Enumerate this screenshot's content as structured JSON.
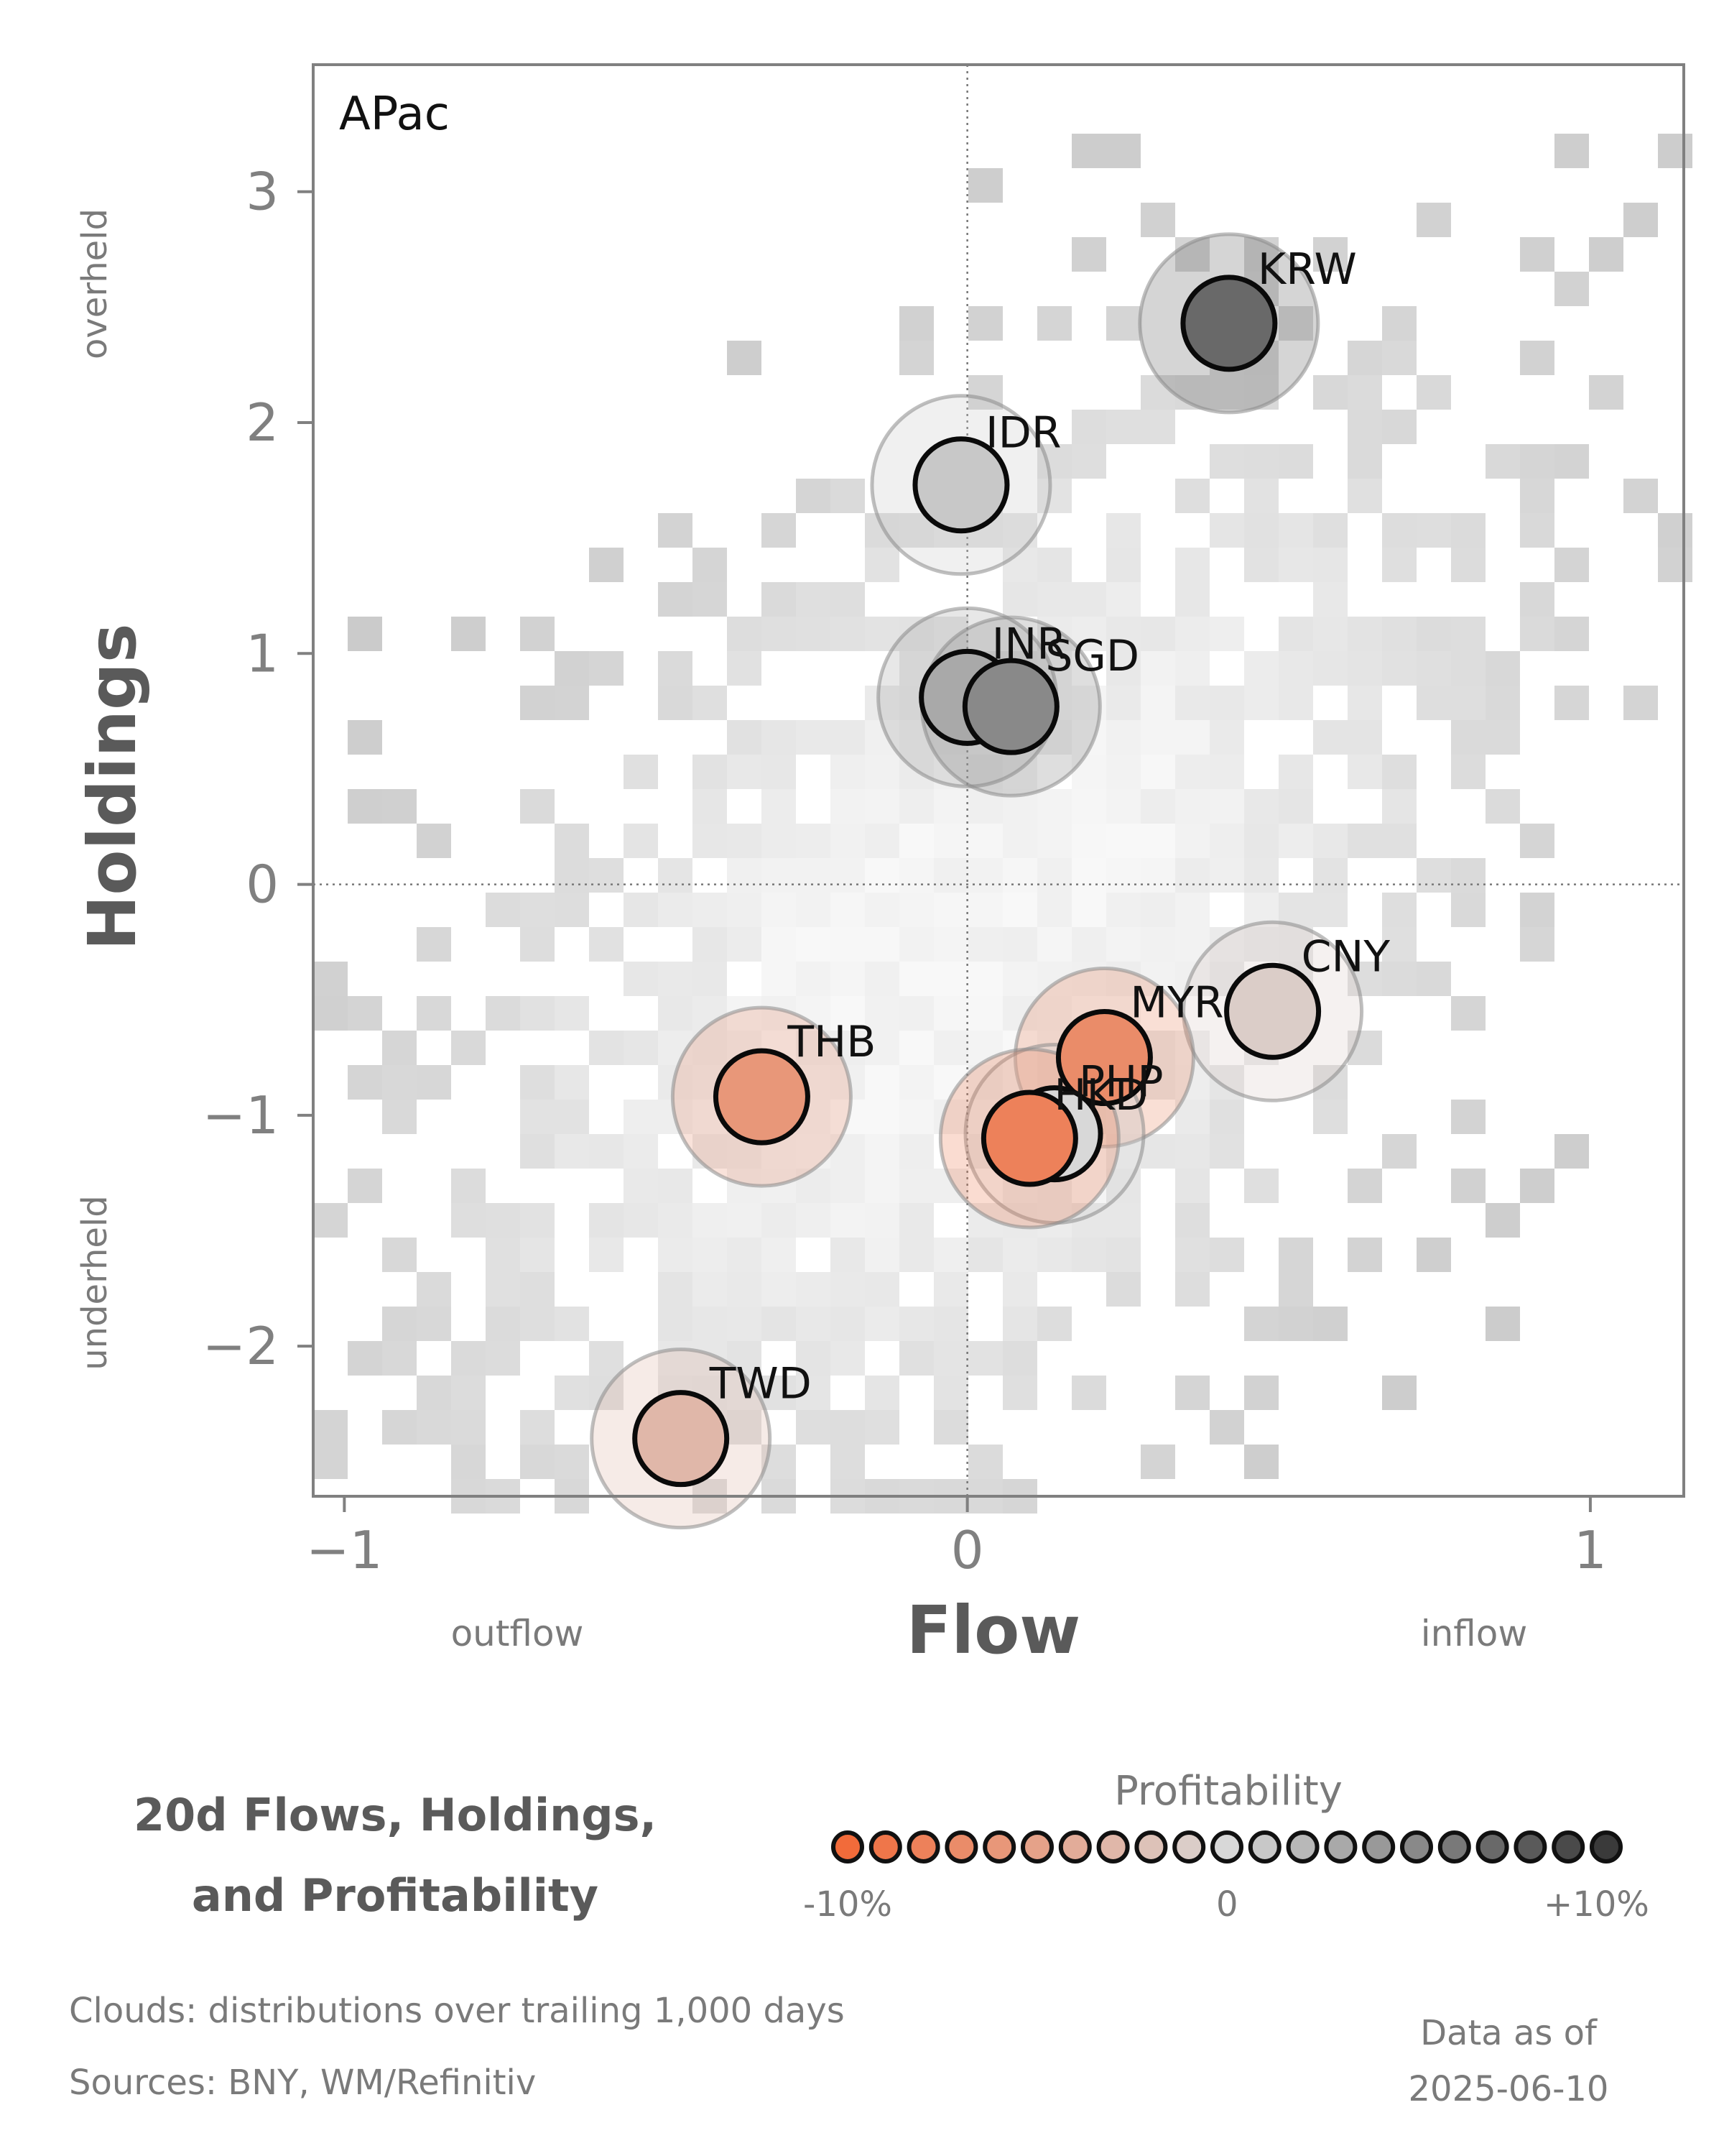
{
  "chart_data": {
    "type": "scatter",
    "panel_label": "APac",
    "xlabel": "Flow",
    "ylabel": "Holdings",
    "xlim": [
      -1.05,
      1.15
    ],
    "ylim": [
      -2.65,
      3.55
    ],
    "x_ticks": [
      -1,
      0,
      1
    ],
    "x_tick_labels": [
      "−1",
      "0",
      "1"
    ],
    "y_ticks": [
      -2,
      -1,
      0,
      1,
      2,
      3
    ],
    "y_tick_labels": [
      "−2",
      "−1",
      "0",
      "1",
      "2",
      "3"
    ],
    "x_annotations": {
      "left": "outflow",
      "right": "inflow"
    },
    "y_annotations": {
      "top": "overheld",
      "bottom": "underheld"
    },
    "grid": false,
    "reference_lines": {
      "x": 0,
      "y": 0
    },
    "points": [
      {
        "label": "KRW",
        "x": 0.42,
        "y": 2.43,
        "profitability": 7
      },
      {
        "label": "IDR",
        "x": -0.01,
        "y": 1.73,
        "profitability": 1
      },
      {
        "label": "INR",
        "x": 0.0,
        "y": 0.81,
        "profitability": 3
      },
      {
        "label": "SGD",
        "x": 0.07,
        "y": 0.77,
        "profitability": 5
      },
      {
        "label": "CNY",
        "x": 0.49,
        "y": -0.55,
        "profitability": -1
      },
      {
        "label": "MYR",
        "x": 0.22,
        "y": -0.75,
        "profitability": -7
      },
      {
        "label": "PHP",
        "x": 0.14,
        "y": -1.08,
        "profitability": 0
      },
      {
        "label": "HKD",
        "x": 0.1,
        "y": -1.1,
        "profitability": -8
      },
      {
        "label": "THB",
        "x": -0.33,
        "y": -0.92,
        "profitability": -6
      },
      {
        "label": "TWD",
        "x": -0.46,
        "y": -2.4,
        "profitability": -3
      }
    ],
    "colorbar": {
      "title": "Profitability",
      "min_label": "-10%",
      "mid_label": "0",
      "max_label": "+10%",
      "range": [
        -10,
        10
      ],
      "low_color": "#f26b3a",
      "mid_color": "#d8d8d8",
      "high_color": "#3a3a3a"
    }
  },
  "title_lines": [
    "20d Flows, Holdings,",
    "and Profitability"
  ],
  "footer": {
    "clouds": "Clouds:  distributions over trailing 1,000 days",
    "sources": "Sources:  BNY, WM/Refinitiv",
    "as_of_label": "Data as of",
    "as_of_date": "2025-06-10"
  }
}
